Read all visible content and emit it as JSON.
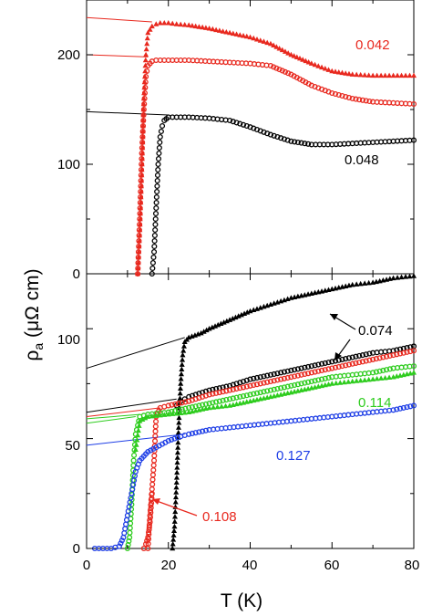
{
  "chart_data": [
    {
      "type": "scatter",
      "panel": "top",
      "xlim": [
        0,
        80
      ],
      "ylim": [
        0,
        250
      ],
      "yticks": [
        0,
        100,
        200
      ],
      "grid": false,
      "series": [
        {
          "label": "0.042",
          "color": "#e8281e",
          "marker": "triangle",
          "x": [
            12.5,
            13,
            13.5,
            14,
            14.5,
            15,
            16,
            17,
            18,
            20,
            22,
            25,
            30,
            35,
            40,
            45,
            50,
            55,
            60,
            65,
            70,
            75,
            80
          ],
          "y": [
            0,
            40,
            95,
            160,
            200,
            220,
            226,
            228,
            229,
            229,
            228,
            227,
            224,
            220,
            216,
            210,
            200,
            192,
            185,
            182,
            181,
            181,
            181
          ],
          "fit": {
            "x0": 0,
            "y0": 234,
            "x1": 16,
            "y1": 230
          }
        },
        {
          "label": "",
          "color": "#e8281e",
          "marker": "circle",
          "x": [
            12.5,
            13,
            13.5,
            14,
            14.5,
            15,
            16,
            17,
            18,
            20,
            22,
            25,
            30,
            35,
            40,
            45,
            50,
            55,
            60,
            65,
            70,
            75,
            80
          ],
          "y": [
            0,
            50,
            110,
            150,
            180,
            190,
            194,
            195,
            195,
            195,
            195,
            195,
            194,
            193,
            192,
            190,
            182,
            172,
            165,
            160,
            157,
            156,
            155
          ],
          "fit": {
            "x0": 0,
            "y0": 200,
            "x1": 15,
            "y1": 198
          }
        },
        {
          "label": "0.048",
          "color": "#000000",
          "marker": "circle",
          "x": [
            16,
            16.5,
            17,
            17.5,
            18,
            18.5,
            19,
            20,
            22,
            25,
            30,
            35,
            40,
            45,
            50,
            55,
            60,
            65,
            70,
            75,
            80
          ],
          "y": [
            0,
            20,
            60,
            100,
            125,
            135,
            140,
            143,
            143,
            143,
            142,
            140,
            134,
            127,
            121,
            118,
            118,
            119,
            120,
            121,
            122
          ],
          "fit": {
            "x0": 0,
            "y0": 148,
            "x1": 20,
            "y1": 145
          }
        }
      ]
    },
    {
      "type": "scatter",
      "panel": "bottom",
      "xlabel": "T (K)",
      "ylabel": "ρa (μΩ cm)",
      "xlim": [
        0,
        80
      ],
      "ylim": [
        0,
        125
      ],
      "xticks": [
        0,
        20,
        40,
        60,
        80
      ],
      "yticks": [
        0,
        50,
        100
      ],
      "grid": false,
      "series": [
        {
          "label": "0.074",
          "color": "#000000",
          "marker": "triangle",
          "x": [
            21,
            21.5,
            22,
            22.5,
            23,
            23.5,
            24,
            25,
            28,
            30,
            35,
            40,
            45,
            50,
            55,
            60,
            65,
            70,
            75,
            80
          ],
          "y": [
            0,
            10,
            30,
            55,
            75,
            88,
            94,
            96,
            98,
            100,
            104,
            108,
            111,
            114,
            116,
            118,
            120,
            121,
            123,
            124
          ],
          "fit": {
            "x0": 0,
            "y0": 82,
            "x1": 24,
            "y1": 96
          }
        },
        {
          "label": "0.074",
          "color": "#000000",
          "marker": "circle",
          "x": [
            22,
            23,
            24,
            25,
            30,
            35,
            40,
            45,
            50,
            55,
            60,
            65,
            70,
            75,
            80
          ],
          "y": [
            65,
            67,
            68,
            69,
            72,
            74,
            77,
            79,
            81,
            83,
            85,
            87,
            89,
            90,
            92
          ],
          "fit": {
            "x0": 0,
            "y0": 62,
            "x1": 22,
            "y1": 68
          }
        },
        {
          "label": "",
          "color": "#e8281e",
          "marker": "circle",
          "x": [
            15,
            15.5,
            16,
            16.5,
            17,
            18,
            20,
            25,
            30,
            35,
            40,
            45,
            50,
            55,
            60,
            65,
            70,
            75,
            80
          ],
          "y": [
            0,
            15,
            27,
            40,
            60,
            64,
            65,
            67,
            70,
            72,
            74,
            76,
            78,
            80,
            82,
            84,
            86,
            88,
            90
          ],
          "fit": {
            "x0": 0,
            "y0": 60,
            "x1": 18,
            "y1": 64
          }
        },
        {
          "label": "0.108",
          "color": "#e8281e",
          "marker": "circle",
          "x": [
            14,
            14.5,
            15,
            15.5,
            16
          ],
          "y": [
            0,
            2,
            5,
            12,
            25
          ],
          "fit": null
        },
        {
          "label": "0.114",
          "color": "#2ecc1e",
          "marker": "circle",
          "x": [
            10,
            10.5,
            11,
            11.5,
            12,
            13,
            15,
            20,
            25,
            30,
            35,
            40,
            45,
            50,
            55,
            60,
            65,
            70,
            75,
            80
          ],
          "y": [
            0,
            5,
            20,
            40,
            52,
            60,
            61,
            62,
            64,
            66,
            68,
            70,
            72,
            74,
            76,
            78,
            79,
            80,
            82,
            83
          ],
          "fit": {
            "x0": 0,
            "y0": 59,
            "x1": 13,
            "y1": 61
          }
        },
        {
          "label": "0.114",
          "color": "#2ecc1e",
          "marker": "triangle",
          "x": [
            12,
            13,
            15,
            20,
            25,
            30,
            35,
            40,
            45,
            50,
            55,
            60,
            65,
            70,
            75,
            80
          ],
          "y": [
            45,
            58,
            60,
            61,
            62,
            64,
            65,
            67,
            69,
            71,
            73,
            75,
            76,
            77,
            78,
            80
          ],
          "fit": {
            "x0": 0,
            "y0": 57,
            "x1": 12,
            "y1": 60
          }
        },
        {
          "label": "0.127",
          "color": "#1e3ee6",
          "marker": "circle",
          "x": [
            2,
            4,
            6,
            8,
            9,
            10,
            11,
            12,
            13,
            14,
            15,
            17,
            20,
            23,
            25,
            30,
            35,
            40,
            45,
            50,
            55,
            60,
            65,
            70,
            75,
            80
          ],
          "y": [
            0,
            0,
            0,
            1,
            5,
            15,
            25,
            35,
            40,
            42,
            44,
            46,
            49,
            51,
            52,
            54,
            55,
            56,
            57,
            58,
            59,
            60,
            61,
            62,
            63,
            65
          ],
          "fit": {
            "x0": 0,
            "y0": 47,
            "x1": 24,
            "y1": 52
          }
        }
      ],
      "annotations": [
        {
          "text": "0.074",
          "color": "#000000"
        },
        {
          "text": "0.114",
          "color": "#2ecc1e"
        },
        {
          "text": "0.127",
          "color": "#1e3ee6"
        },
        {
          "text": "0.108",
          "color": "#e8281e"
        }
      ]
    }
  ],
  "labels": {
    "top_label_1": "0.042",
    "top_label_2": "0.048",
    "bottom_label_074": "0.074",
    "bottom_label_114": "0.114",
    "bottom_label_127": "0.127",
    "bottom_label_108": "0.108",
    "xlabel": "T (K)",
    "ylabel_rho": "ρ",
    "ylabel_sub": "a",
    "ylabel_units": " (μΩ cm)"
  },
  "ticks": {
    "top_y": [
      "0",
      "100",
      "200"
    ],
    "bottom_y": [
      "0",
      "50",
      "100"
    ],
    "x": [
      "0",
      "20",
      "40",
      "60",
      "80"
    ]
  }
}
